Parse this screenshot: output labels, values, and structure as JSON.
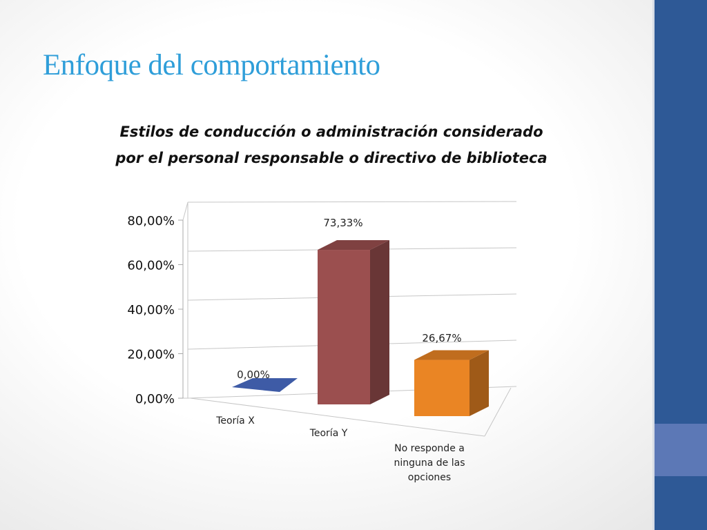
{
  "slide": {
    "title": "Enfoque del comportamiento"
  },
  "theme": {
    "title_color": "#2f9ed9",
    "sidebar_color": "#2e5996",
    "sidebar_accent_color": "#5c78b6"
  },
  "chart_data": {
    "type": "bar",
    "style": "3d-column",
    "title": "Estilos de conducción o administración considerado por el personal responsable o directivo de biblioteca",
    "title_lines": [
      "Estilos de conducción o administración considerado",
      "por el personal responsable o directivo de biblioteca"
    ],
    "categories": [
      [
        "Teoría X"
      ],
      [
        "Teoría Y"
      ],
      [
        "No responde a",
        "ninguna de las",
        "opciones"
      ]
    ],
    "values": [
      0.0,
      73.33,
      26.67
    ],
    "data_labels": [
      "0,00%",
      "73,33%",
      "26,67%"
    ],
    "bar_colors": [
      "#3e5ba6",
      "#9b4f4f",
      "#ea8524"
    ],
    "y_ticks": [
      0,
      20,
      40,
      60,
      80
    ],
    "y_tick_labels": [
      "0,00%",
      "20,00%",
      "40,00%",
      "60,00%",
      "80,00%"
    ],
    "ylim": [
      0,
      80
    ],
    "grid": true,
    "legend": "none"
  }
}
